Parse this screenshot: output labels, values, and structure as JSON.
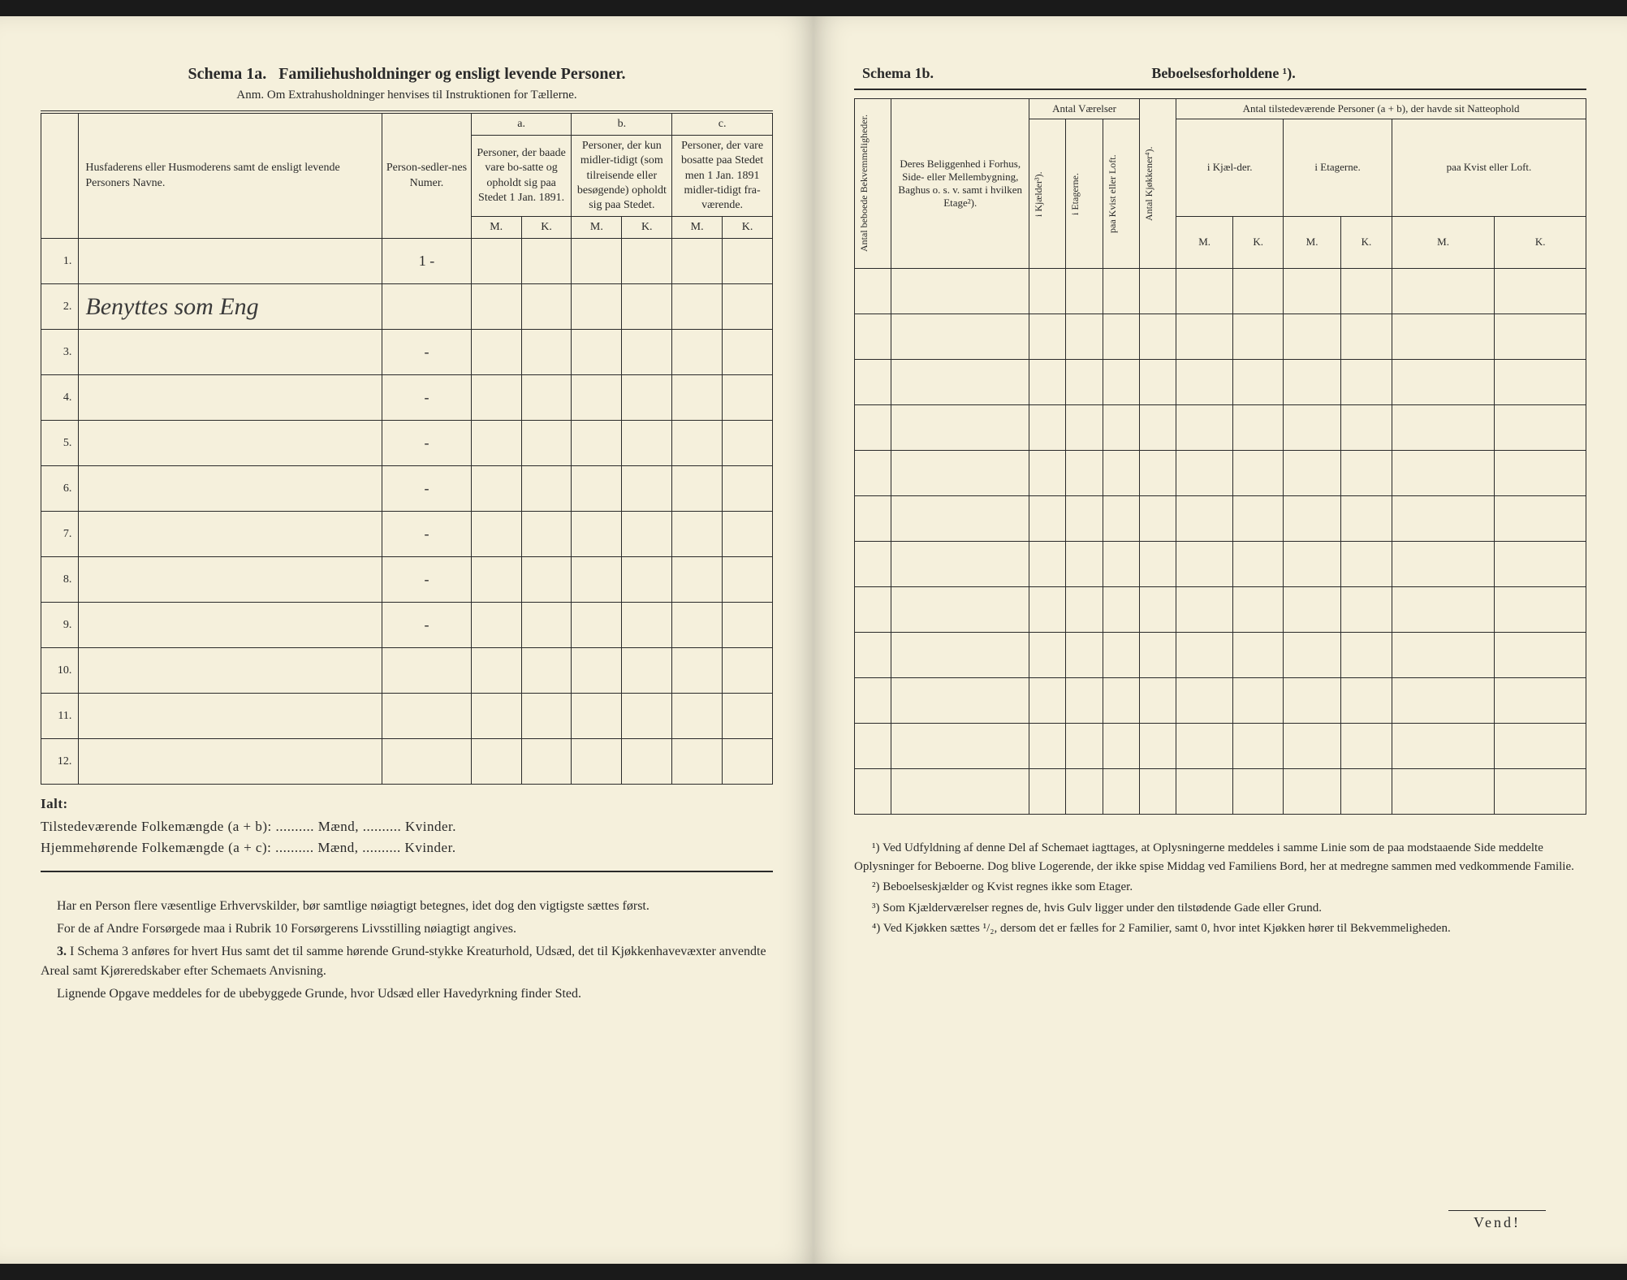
{
  "left": {
    "schema_label": "Schema 1a.",
    "schema_title": "Familiehusholdninger og ensligt levende Personer.",
    "anm": "Anm. Om Extrahusholdninger henvises til Instruktionen for Tællerne.",
    "headers": {
      "name": "Husfaderens eller Husmoderens samt de ensligt levende Personers Navne.",
      "personsedler": "Person-sedler-nes Numer.",
      "a_label": "a.",
      "a_text": "Personer, der baade vare bo-satte og opholdt sig paa Stedet 1 Jan. 1891.",
      "b_label": "b.",
      "b_text": "Personer, der kun midler-tidigt (som tilreisende eller besøgende) opholdt sig paa Stedet.",
      "c_label": "c.",
      "c_text": "Personer, der vare bosatte paa Stedet men 1 Jan. 1891 midler-tidigt fra-værende.",
      "M": "M.",
      "K": "K."
    },
    "rows": [
      {
        "n": "1.",
        "name": "",
        "ps": "1 -"
      },
      {
        "n": "2.",
        "name": "Benyttes som Eng",
        "ps": ""
      },
      {
        "n": "3.",
        "name": "",
        "ps": "-"
      },
      {
        "n": "4.",
        "name": "",
        "ps": "-"
      },
      {
        "n": "5.",
        "name": "",
        "ps": "-"
      },
      {
        "n": "6.",
        "name": "",
        "ps": "-"
      },
      {
        "n": "7.",
        "name": "",
        "ps": "-"
      },
      {
        "n": "8.",
        "name": "",
        "ps": "-"
      },
      {
        "n": "9.",
        "name": "",
        "ps": "-"
      },
      {
        "n": "10.",
        "name": "",
        "ps": ""
      },
      {
        "n": "11.",
        "name": "",
        "ps": ""
      },
      {
        "n": "12.",
        "name": "",
        "ps": ""
      }
    ],
    "totals": {
      "ialt": "Ialt:",
      "line1": "Tilstedeværende Folkemængde (a + b): .......... Mænd, .......... Kvinder.",
      "line2": "Hjemmehørende Folkemængde (a + c): .......... Mænd, .......... Kvinder."
    },
    "footnotes": {
      "p1": "Har en Person flere væsentlige Erhvervskilder, bør samtlige nøiagtigt betegnes, idet dog den vigtigste sættes først.",
      "p2": "For de af Andre Forsørgede maa i Rubrik 10 Forsørgerens Livsstilling nøiagtigt angives.",
      "p3_num": "3.",
      "p3": "I Schema 3 anføres for hvert Hus samt det til samme hørende Grund-stykke Kreaturhold, Udsæd, det til Kjøkkenhavevæxter anvendte Areal samt Kjøreredskaber efter Schemaets Anvisning.",
      "p4": "Lignende Opgave meddeles for de ubebyggede Grunde, hvor Udsæd eller Havedyrkning finder Sted."
    }
  },
  "right": {
    "schema_label": "Schema 1b.",
    "schema_title": "Beboelsesforholdene ¹).",
    "headers": {
      "antal_bekv": "Antal beboede Bekvemmeligheder.",
      "beliggenhed": "Deres Beliggenhed i Forhus, Side- eller Mellembygning, Baghus o. s. v. samt i hvilken Etage²).",
      "antal_vaer": "Antal Værelser",
      "kjael": "i Kjælder³).",
      "etag": "i Etagerne.",
      "kvist": "paa Kvist eller Loft.",
      "kjok": "Antal Kjøkkener⁴).",
      "antal_pers": "Antal tilstedeværende Personer (a + b), der havde sit Natteophold",
      "i_kjael": "i Kjæl-der.",
      "i_etag": "i Etagerne.",
      "paa_kvist": "paa Kvist eller Loft.",
      "M": "M.",
      "K": "K."
    },
    "row_count": 12,
    "footnotes": {
      "f1": "¹) Ved Udfyldning af denne Del af Schemaet iagttages, at Oplysningerne meddeles i samme Linie som de paa modstaaende Side meddelte Oplysninger for Beboerne. Dog blive Logerende, der ikke spise Middag ved Familiens Bord, her at medregne sammen med vedkommende Familie.",
      "f2": "²) Beboelseskjælder og Kvist regnes ikke som Etager.",
      "f3": "³) Som Kjælderværelser regnes de, hvis Gulv ligger under den tilstødende Gade eller Grund.",
      "f4": "⁴) Ved Kjøkken sættes ¹/₂, dersom det er fælles for 2 Familier, samt 0, hvor intet Kjøkken hører til Bekvemmeligheden."
    },
    "vend": "Vend!"
  }
}
